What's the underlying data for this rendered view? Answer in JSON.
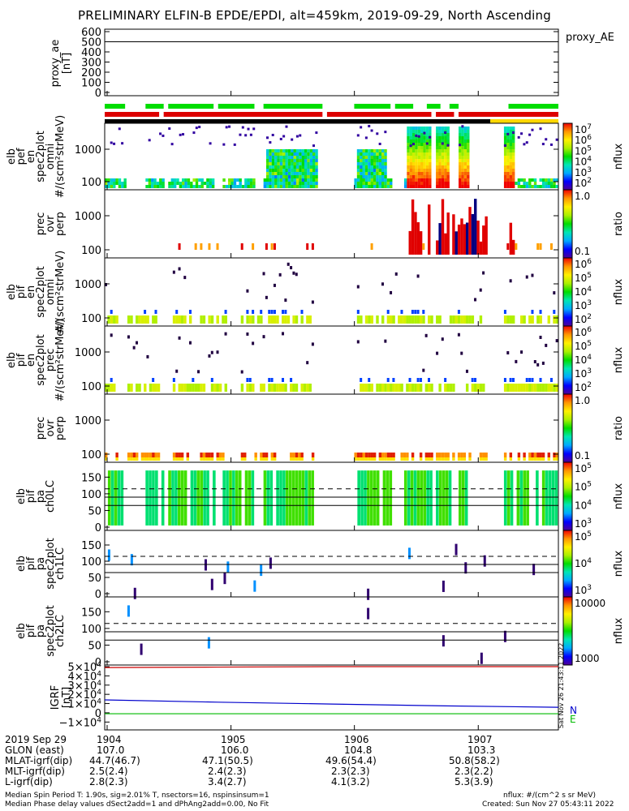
{
  "title": "PRELIMINARY ELFIN-B EPDE/EPDI, alt=459km, 2019-09-29, North Ascending",
  "chart_data": [
    {
      "type": "line",
      "panel": "proxy_AE",
      "ylabel": "proxy_ae [nT]",
      "right_label": "proxy_AE",
      "yticks": [
        "600",
        "500",
        "400",
        "300",
        "200",
        "100",
        "0"
      ],
      "ylim": [
        0,
        600
      ],
      "value": 500
    },
    {
      "type": "bar",
      "panel": "status_bars",
      "colors": [
        "#00dd00",
        "#dd0000",
        "#000000",
        "#ffd800"
      ]
    },
    {
      "type": "heatmap",
      "panel": "epde_omni",
      "ylabel": "elb pef en spec2plot omni #/(scm^2strMeV)",
      "yticks": [
        "1000",
        "100"
      ],
      "cbar_label": "nflux",
      "cbar_ticks": [
        "10^7",
        "10^6",
        "10^5",
        "10^4",
        "10^3",
        "10^2"
      ],
      "scale": "log"
    },
    {
      "type": "heatmap",
      "panel": "epde_ratio",
      "ylabel": "prec ovr perp",
      "yticks": [
        "1000",
        "100"
      ],
      "cbar_label": "ratio",
      "cbar_ticks": [
        "1.0",
        "0.1"
      ],
      "scale": "log"
    },
    {
      "type": "heatmap",
      "panel": "epdi_omni",
      "ylabel": "elb pif en spec2plot omni #/(scm^2strMeV)",
      "yticks": [
        "1000",
        "100"
      ],
      "cbar_label": "nflux",
      "cbar_ticks": [
        "10^6",
        "10^5",
        "10^4",
        "10^3",
        "10^2"
      ],
      "scale": "log"
    },
    {
      "type": "heatmap",
      "panel": "epdi_prec",
      "ylabel": "elb pif en spec2plot prec #/(scm^2strMeV)",
      "yticks": [
        "1000",
        "100"
      ],
      "cbar_label": "nflux",
      "cbar_ticks": [
        "10^6",
        "10^5",
        "10^4",
        "10^3",
        "10^2"
      ],
      "scale": "log"
    },
    {
      "type": "heatmap",
      "panel": "epdi_ratio",
      "ylabel": "prec ovr perp",
      "yticks": [
        "1000",
        "100"
      ],
      "cbar_label": "ratio",
      "cbar_ticks": [
        "1.0",
        "0.1"
      ],
      "scale": "log"
    },
    {
      "type": "heatmap",
      "panel": "pa_ch0",
      "ylabel": "elb pif pa spec2plot ch0LC",
      "yticks": [
        "150",
        "100",
        "50",
        "0"
      ],
      "ylim": [
        0,
        180
      ],
      "cbar_label": "nflux",
      "cbar_ticks": [
        "10^5",
        "10^5",
        "10^4",
        "10^3"
      ]
    },
    {
      "type": "heatmap",
      "panel": "pa_ch1",
      "ylabel": "elb pif pa spec2plot ch1LC",
      "yticks": [
        "150",
        "100",
        "50",
        "0"
      ],
      "ylim": [
        0,
        180
      ],
      "cbar_label": "nflux",
      "cbar_ticks": [
        "10^5",
        "10^4",
        "10^3"
      ]
    },
    {
      "type": "heatmap",
      "panel": "pa_ch2",
      "ylabel": "elb pif pa spec2plot ch2LC",
      "yticks": [
        "150",
        "100",
        "50",
        "0"
      ],
      "ylim": [
        0,
        180
      ],
      "cbar_label": "nflux",
      "cbar_ticks": [
        "10000",
        "1000"
      ]
    },
    {
      "type": "line",
      "panel": "IGRF",
      "ylabel": "IGRF [nT]",
      "yticks": [
        "5×10^4",
        "4×10^4",
        "3×10^4",
        "2×10^4",
        "1×10^4",
        "0",
        "−1×10^4"
      ],
      "ylim": [
        -15000,
        50000
      ],
      "series": [
        {
          "name": "N",
          "color": "#0000cc",
          "values": [
            14000,
            11500,
            9500,
            7500,
            6000
          ]
        },
        {
          "name": "E",
          "color": "#00bb00",
          "values": [
            -1000,
            -1000,
            -1000,
            -1000,
            -1000
          ]
        },
        {
          "name": "",
          "color": "#cc0000",
          "values": [
            49000,
            49500,
            50000,
            50000,
            50000
          ]
        }
      ]
    }
  ],
  "footer": {
    "rows": [
      {
        "label": "2019 Sep 29",
        "values": [
          "1904",
          "1905",
          "1906",
          "1907"
        ]
      },
      {
        "label": "GLON (east)",
        "values": [
          "107.0",
          "106.0",
          "104.8",
          "103.3"
        ]
      },
      {
        "label": "MLAT-igrf(dip)",
        "values": [
          "44.7(46.7)",
          "47.1(50.5)",
          "49.6(54.4)",
          "50.8(58.2)"
        ]
      },
      {
        "label": "MLT-igrf(dip)",
        "values": [
          "2.5(2.4)",
          "2.4(2.3)",
          "2.3(2.3)",
          "2.3(2.2)"
        ]
      },
      {
        "label": "L-igrf(dip)",
        "values": [
          "2.8(2.3)",
          "3.4(2.7)",
          "4.1(3.2)",
          "5.3(3.9)"
        ]
      }
    ],
    "note1_left": "Median Spin Period T: 1.90s, sig=2.01% T, nsectors=16, nspinsinsum=1",
    "note2_left": "Median Phase delay values dSect2add=1 and dPhAng2add=0.00, No Fit",
    "note1_right": "nflux: #/(cm^2 s sr MeV)",
    "note2_right": "Created: Sun Nov 27 05:43:11 2022",
    "side_stamp": "Sat Nov 26 21:43:11 2022"
  }
}
